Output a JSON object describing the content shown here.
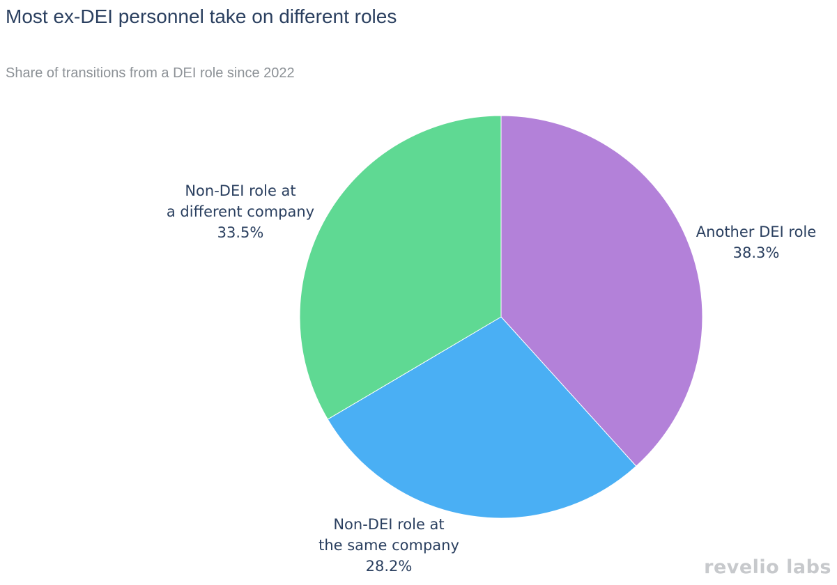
{
  "chart_data": {
    "type": "pie",
    "title": "Most ex-DEI personnel take on different roles",
    "subtitle": "Share of transitions from a DEI role since 2022",
    "unit": "%",
    "slices": [
      {
        "label_lines": [
          "Another DEI role"
        ],
        "value": 38.3,
        "value_label": "38.3%",
        "color": "#b381d9"
      },
      {
        "label_lines": [
          "Non-DEI role at",
          "the same company"
        ],
        "value": 28.2,
        "value_label": "28.2%",
        "color": "#4aaff4"
      },
      {
        "label_lines": [
          "Non-DEI role at",
          "a different company"
        ],
        "value": 33.5,
        "value_label": "33.5%",
        "color": "#5fd993"
      }
    ],
    "start_angle": "12 o'clock",
    "direction": "clockwise"
  },
  "branding": {
    "logo_text": "revelio labs"
  }
}
